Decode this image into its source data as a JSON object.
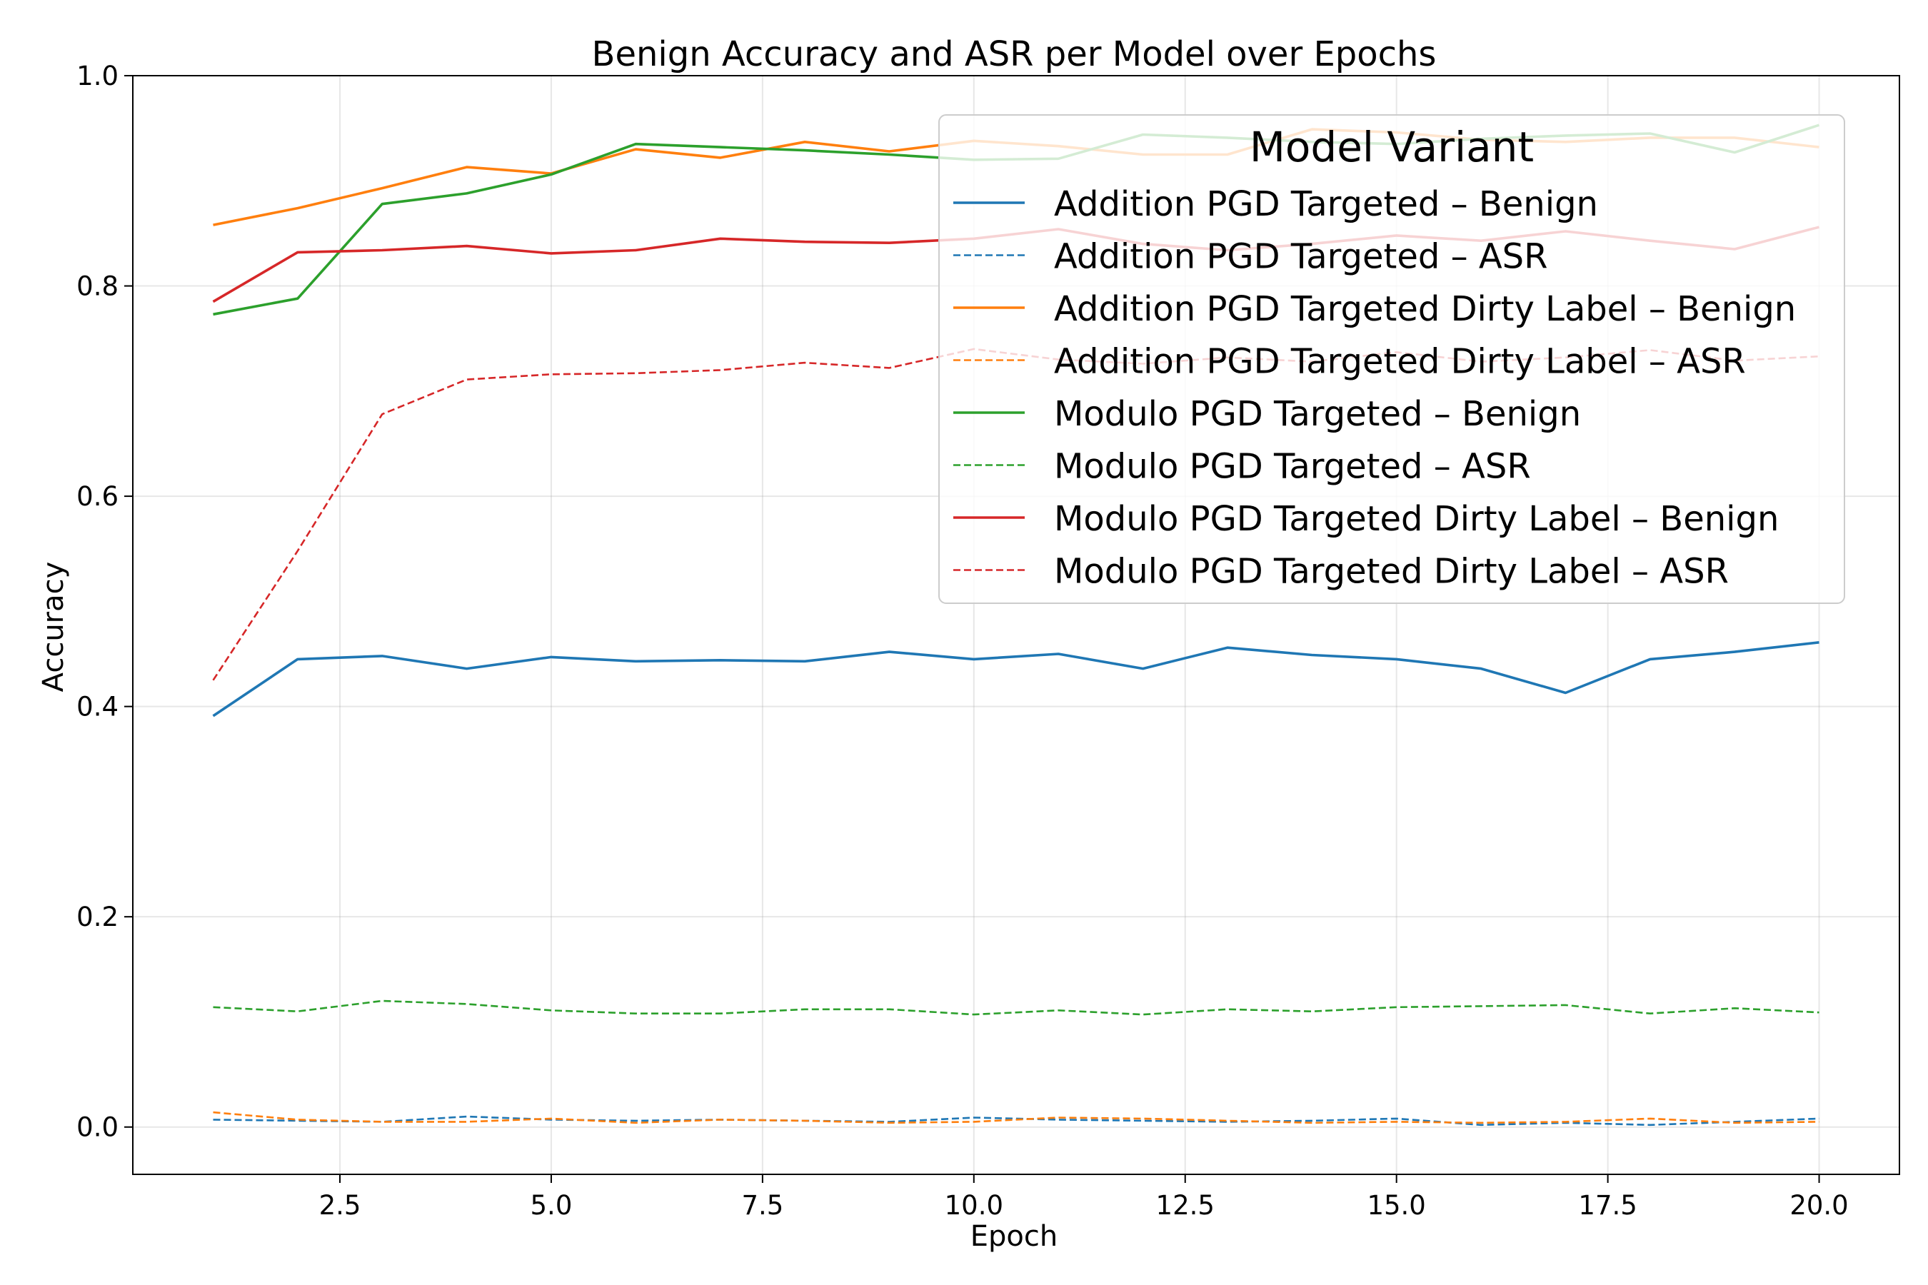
{
  "chart_data": {
    "type": "line",
    "title": "Benign Accuracy and ASR per Model over Epochs",
    "xlabel": "Epoch",
    "ylabel": "Accuracy",
    "xlim": [
      0.05,
      20.95
    ],
    "ylim": [
      -0.045,
      1.0
    ],
    "xticks": [
      2.5,
      5.0,
      7.5,
      10.0,
      12.5,
      15.0,
      17.5,
      20.0
    ],
    "xtick_labels": [
      "2.5",
      "5.0",
      "7.5",
      "10.0",
      "12.5",
      "15.0",
      "17.5",
      "20.0"
    ],
    "yticks": [
      0.0,
      0.2,
      0.4,
      0.6,
      0.8,
      1.0
    ],
    "ytick_labels": [
      "0.0",
      "0.2",
      "0.4",
      "0.6",
      "0.8",
      "1.0"
    ],
    "grid": true,
    "legend_title": "Model Variant",
    "legend_position": "top-right",
    "x": [
      1,
      2,
      3,
      4,
      5,
      6,
      7,
      8,
      9,
      10,
      11,
      12,
      13,
      14,
      15,
      16,
      17,
      18,
      19,
      20
    ],
    "series": [
      {
        "name": "Addition PGD Targeted – Benign",
        "color": "#1f77b4",
        "style": "solid",
        "values": [
          0.391,
          0.445,
          0.448,
          0.436,
          0.447,
          0.443,
          0.444,
          0.443,
          0.452,
          0.445,
          0.45,
          0.436,
          0.456,
          0.449,
          0.445,
          0.436,
          0.413,
          0.445,
          0.452,
          0.461
        ]
      },
      {
        "name": "Addition PGD Targeted – ASR",
        "color": "#1f77b4",
        "style": "dashed",
        "values": [
          0.007,
          0.006,
          0.005,
          0.01,
          0.007,
          0.006,
          0.007,
          0.006,
          0.005,
          0.009,
          0.007,
          0.006,
          0.005,
          0.006,
          0.008,
          0.002,
          0.004,
          0.002,
          0.005,
          0.008
        ]
      },
      {
        "name": "Addition PGD Targeted Dirty Label – Benign",
        "color": "#ff7f0e",
        "style": "solid",
        "values": [
          0.858,
          0.874,
          0.893,
          0.913,
          0.907,
          0.93,
          0.922,
          0.937,
          0.928,
          0.938,
          0.933,
          0.925,
          0.925,
          0.949,
          0.946,
          0.939,
          0.937,
          0.941,
          0.941,
          0.932
        ]
      },
      {
        "name": "Addition PGD Targeted Dirty Label – ASR",
        "color": "#ff7f0e",
        "style": "dashed",
        "values": [
          0.014,
          0.007,
          0.005,
          0.005,
          0.008,
          0.004,
          0.007,
          0.006,
          0.004,
          0.005,
          0.009,
          0.008,
          0.006,
          0.004,
          0.005,
          0.004,
          0.005,
          0.008,
          0.004,
          0.005
        ]
      },
      {
        "name": "Modulo PGD Targeted – Benign",
        "color": "#2ca02c",
        "style": "solid",
        "values": [
          0.773,
          0.788,
          0.878,
          0.888,
          0.906,
          0.935,
          0.932,
          0.929,
          0.925,
          0.92,
          0.921,
          0.944,
          0.941,
          0.937,
          0.935,
          0.94,
          0.943,
          0.945,
          0.927,
          0.953
        ]
      },
      {
        "name": "Modulo PGD Targeted – ASR",
        "color": "#2ca02c",
        "style": "dashed",
        "values": [
          0.114,
          0.11,
          0.12,
          0.117,
          0.111,
          0.108,
          0.108,
          0.112,
          0.112,
          0.107,
          0.111,
          0.107,
          0.112,
          0.11,
          0.114,
          0.115,
          0.116,
          0.108,
          0.113,
          0.109
        ]
      },
      {
        "name": "Modulo PGD Targeted Dirty Label – Benign",
        "color": "#d62728",
        "style": "solid",
        "values": [
          0.785,
          0.832,
          0.834,
          0.838,
          0.831,
          0.834,
          0.845,
          0.842,
          0.841,
          0.845,
          0.854,
          0.84,
          0.834,
          0.84,
          0.848,
          0.843,
          0.852,
          0.843,
          0.835,
          0.856
        ]
      },
      {
        "name": "Modulo PGD Targeted Dirty Label – ASR",
        "color": "#d62728",
        "style": "dashed",
        "values": [
          0.425,
          0.548,
          0.678,
          0.711,
          0.716,
          0.717,
          0.72,
          0.727,
          0.722,
          0.74,
          0.73,
          0.726,
          0.732,
          0.728,
          0.737,
          0.728,
          0.732,
          0.739,
          0.729,
          0.733
        ]
      }
    ]
  }
}
